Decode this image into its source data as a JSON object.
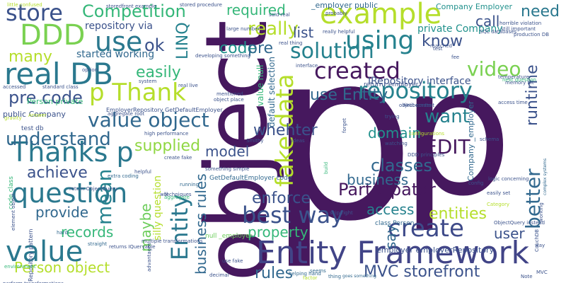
{
  "palette": {
    "purple": "#46185e",
    "indigo": "#423e85",
    "slate": "#31628b",
    "teal": "#26818e",
    "green": "#1f9e89",
    "lime": "#6ccd5a",
    "yellow": "#b5de2b",
    "pale": "#90d743"
  },
  "words": [
    {
      "text": "p",
      "color": "#46185e"
    },
    {
      "text": "p",
      "color": "#46185e"
    },
    {
      "text": "object",
      "color": "#46185e"
    },
    {
      "text": "Entity Framework",
      "color": "#414487"
    },
    {
      "text": "example",
      "color": "#b5de2b"
    },
    {
      "text": "using",
      "color": "#26828e"
    },
    {
      "text": "DDD",
      "color": "#7ad151"
    },
    {
      "text": "real DB",
      "color": "#2a788e"
    },
    {
      "text": "p Thank",
      "color": "#b5de2b"
    },
    {
      "text": "store",
      "color": "#3b528b"
    },
    {
      "text": "Competition",
      "color": "#35b779"
    },
    {
      "text": "use",
      "color": "#2a788e"
    },
    {
      "text": "created",
      "color": "#46185e"
    },
    {
      "text": "repository",
      "color": "#26828e"
    },
    {
      "text": "solution",
      "color": "#26828e"
    },
    {
      "text": "Thanks p",
      "color": "#2a788e"
    },
    {
      "text": "question",
      "color": "#2a788e"
    },
    {
      "text": "value object",
      "color": "#31688e"
    },
    {
      "text": "value",
      "color": "#2a788e"
    },
    {
      "text": "best way",
      "color": "#3b528b"
    },
    {
      "text": "create",
      "color": "#3e4a89"
    },
    {
      "text": "Participator",
      "color": "#46185e"
    },
    {
      "text": "fake data",
      "color": "#b5de2b"
    },
    {
      "text": "Entity",
      "color": "#2a788e"
    },
    {
      "text": "mean",
      "color": "#26828e"
    },
    {
      "text": "video",
      "color": "#7ad151"
    },
    {
      "text": "better",
      "color": "#31688e"
    },
    {
      "text": "runtime",
      "color": "#3b528b"
    },
    {
      "text": "need",
      "color": "#2a788e"
    },
    {
      "text": "call",
      "color": "#3b528b"
    },
    {
      "text": "EDIT",
      "color": "#46185e"
    },
    {
      "text": "classes",
      "color": "#31688e"
    },
    {
      "text": "want",
      "color": "#26828e"
    },
    {
      "text": "domain",
      "color": "#21918c"
    },
    {
      "text": "whehter",
      "color": "#3b528b"
    },
    {
      "text": "use Entity",
      "color": "#31688e"
    },
    {
      "text": "IRepository interface",
      "color": "#3b528b"
    },
    {
      "text": "understand",
      "color": "#31688e"
    },
    {
      "text": "pre code",
      "color": "#3b528b"
    },
    {
      "text": "many",
      "color": "#b5de2b"
    },
    {
      "text": "real",
      "color": "#2a788e"
    },
    {
      "text": "ok",
      "color": "#3b528b"
    },
    {
      "text": "started working",
      "color": "#31688e"
    },
    {
      "text": "easily",
      "color": "#35b779"
    },
    {
      "text": "code",
      "color": "#21918c"
    },
    {
      "text": "pre",
      "color": "#31688e"
    },
    {
      "text": "really",
      "color": "#b5de2b"
    },
    {
      "text": "list",
      "color": "#3b528b"
    },
    {
      "text": "know",
      "color": "#3b528b"
    },
    {
      "text": "required",
      "color": "#35b779"
    },
    {
      "text": "private Company",
      "color": "#21918c"
    },
    {
      "text": "repository via",
      "color": "#3b528b"
    },
    {
      "text": "LINQ",
      "color": "#26828e"
    },
    {
      "text": "achieve",
      "color": "#3b528b"
    },
    {
      "text": "supplied",
      "color": "#90d743"
    },
    {
      "text": "model",
      "color": "#3b528b"
    },
    {
      "text": "provide",
      "color": "#31688e"
    },
    {
      "text": "records",
      "color": "#35b779"
    },
    {
      "text": "Person object",
      "color": "#b5de2b"
    },
    {
      "text": "maybe",
      "color": "#6ccd5a"
    },
    {
      "text": "business rules",
      "color": "#31688e"
    },
    {
      "text": "enforce",
      "color": "#3b528b"
    },
    {
      "text": "access",
      "color": "#26828e"
    },
    {
      "text": "entities",
      "color": "#b5de2b"
    },
    {
      "text": "property",
      "color": "#35b779"
    },
    {
      "text": "business",
      "color": "#31688e"
    },
    {
      "text": "say",
      "color": "#31688e"
    },
    {
      "text": "user",
      "color": "#3b528b"
    },
    {
      "text": "rules",
      "color": "#31688e"
    },
    {
      "text": "MVC storefront",
      "color": "#3b528b"
    },
    {
      "text": "public Company",
      "color": "#3b528b"
    },
    {
      "text": "Company Employer",
      "color": "#21918c"
    },
    {
      "text": "_employer public",
      "color": "#31688e"
    },
    {
      "text": "Company _employer",
      "color": "#31688e"
    },
    {
      "text": "silly question",
      "color": "#b5de2b"
    },
    {
      "text": "Person private",
      "color": "#35b779"
    },
    {
      "text": "value null",
      "color": "#35b779"
    },
    {
      "text": "default selection",
      "color": "#31688e"
    },
    {
      "text": "employer employerRepository",
      "color": "#3b528b"
    },
    {
      "text": "GetDefaultEmployer code",
      "color": "#31688e"
    },
    {
      "text": "null _employer",
      "color": "#6ccd5a"
    },
    {
      "text": "class Person",
      "color": "#31688e"
    },
    {
      "text": "return _employer",
      "color": "#3b528b"
    },
    {
      "text": "EmployerRepository GetDefaultEmployer",
      "color": "#3b528b"
    },
    {
      "text": "real thing",
      "color": "#3b528b"
    },
    {
      "text": "developing something",
      "color": "#3b528b"
    },
    {
      "text": "code class",
      "color": "#35b779"
    },
    {
      "text": "test db",
      "color": "#3b528b"
    },
    {
      "text": "Repository pattern",
      "color": "#3b528b"
    },
    {
      "text": "skip right",
      "color": "#3b528b"
    },
    {
      "text": "helping hand",
      "color": "#31688e"
    },
    {
      "text": "goes something",
      "color": "#31688e"
    },
    {
      "text": "NHibernate",
      "color": "#3b528b"
    },
    {
      "text": "SQL databases",
      "color": "#3b528b"
    },
    {
      "text": "horrible violation",
      "color": "#3b528b"
    },
    {
      "text": "still important",
      "color": "#3b528b"
    },
    {
      "text": "production DB",
      "color": "#3b528b"
    },
    {
      "text": "next question",
      "color": "#35b779"
    },
    {
      "text": "complex systems",
      "color": "#31688e"
    },
    {
      "text": "easily set",
      "color": "#3b528b"
    },
    {
      "text": "extra coding",
      "color": "#31688e"
    },
    {
      "text": "high performance",
      "color": "#3b528b"
    },
    {
      "text": "aggregate root",
      "color": "#3b528b"
    },
    {
      "text": "storedfront example",
      "color": "#3b528b"
    },
    {
      "text": "stored procedure",
      "color": "#3b528b"
    },
    {
      "text": "said real",
      "color": "#3b528b"
    },
    {
      "text": "little confused",
      "color": "#b5de2b"
    },
    {
      "text": "perform transformations",
      "color": "#3b528b"
    },
    {
      "text": "environment",
      "color": "#35b779"
    },
    {
      "text": "straight",
      "color": "#31688e"
    },
    {
      "text": "running",
      "color": "#31688e"
    },
    {
      "text": "helpful",
      "color": "#3b528b"
    },
    {
      "text": "ideas",
      "color": "#3b528b"
    },
    {
      "text": "schema",
      "color": "#3b528b"
    },
    {
      "text": "Smithy",
      "color": "#3b528b"
    },
    {
      "text": "aggregate",
      "color": "#35b779"
    },
    {
      "text": "option",
      "color": "#3b528b"
    },
    {
      "text": "hard",
      "color": "#31688e"
    },
    {
      "text": "seems",
      "color": "#31688e"
    },
    {
      "text": "decimal",
      "color": "#3b528b"
    },
    {
      "text": "factor",
      "color": "#b5de2b"
    },
    {
      "text": "thing",
      "color": "#31688e"
    },
    {
      "text": "use fake",
      "color": "#3b528b"
    },
    {
      "text": "will",
      "color": "#3b528b"
    },
    {
      "text": "MVC",
      "color": "#3b528b"
    },
    {
      "text": "CouchDB",
      "color": "#3b528b"
    },
    {
      "text": "build",
      "color": "#35b779"
    },
    {
      "text": "something simple",
      "color": "#3b528b"
    },
    {
      "text": "gravity",
      "color": "#b5de2b"
    },
    {
      "text": "configurations",
      "color": "#b5de2b"
    },
    {
      "text": "DDD principles",
      "color": "#3b528b"
    },
    {
      "text": "logic concerning",
      "color": "#3b528b"
    },
    {
      "text": "return ObjectQuery",
      "color": "#3b528b"
    },
    {
      "text": "Category",
      "color": "#b5de2b"
    },
    {
      "text": "ObjectQuery instead",
      "color": "#3b528b"
    },
    {
      "text": "working",
      "color": "#3b528b"
    },
    {
      "text": "multiple transformations",
      "color": "#3b528b"
    },
    {
      "text": "Answer",
      "color": "#b5de2b"
    },
    {
      "text": "returns IQueryable",
      "color": "#3b528b"
    },
    {
      "text": "real live",
      "color": "#3b528b"
    },
    {
      "text": "create fake",
      "color": "#3b528b"
    },
    {
      "text": "config",
      "color": "#3b528b"
    },
    {
      "text": "trying",
      "color": "#3b528b"
    },
    {
      "text": "watching",
      "color": "#3b528b"
    },
    {
      "text": "forget",
      "color": "#3b528b"
    },
    {
      "text": "access time",
      "color": "#3b528b"
    },
    {
      "text": "test",
      "color": "#3b528b"
    },
    {
      "text": "temperature",
      "color": "#3b528b"
    },
    {
      "text": "really helpful",
      "color": "#3b528b"
    },
    {
      "text": "memory hit",
      "color": "#3b528b"
    },
    {
      "text": "object context",
      "color": "#3b528b"
    },
    {
      "text": "accessed",
      "color": "#3b528b"
    },
    {
      "text": "standard class",
      "color": "#3b528b"
    },
    {
      "text": "large number",
      "color": "#3b528b"
    },
    {
      "text": "system",
      "color": "#3b528b"
    },
    {
      "text": "mentioned",
      "color": "#3b528b"
    },
    {
      "text": "object place",
      "color": "#3b528b"
    },
    {
      "text": "element object",
      "color": "#3b528b"
    },
    {
      "text": "matched",
      "color": "#3b528b"
    },
    {
      "text": "advantages",
      "color": "#3b528b"
    },
    {
      "text": "probably",
      "color": "#3b528b"
    },
    {
      "text": "techniques",
      "color": "#3b528b"
    },
    {
      "text": "interface",
      "color": "#3b528b"
    },
    {
      "text": "fee",
      "color": "#3b528b"
    },
    {
      "text": "way",
      "color": "#3b528b"
    },
    {
      "text": "Note",
      "color": "#3b528b"
    },
    {
      "text": "invert",
      "color": "#3b528b"
    },
    {
      "text": "good",
      "color": "#3b528b"
    }
  ]
}
